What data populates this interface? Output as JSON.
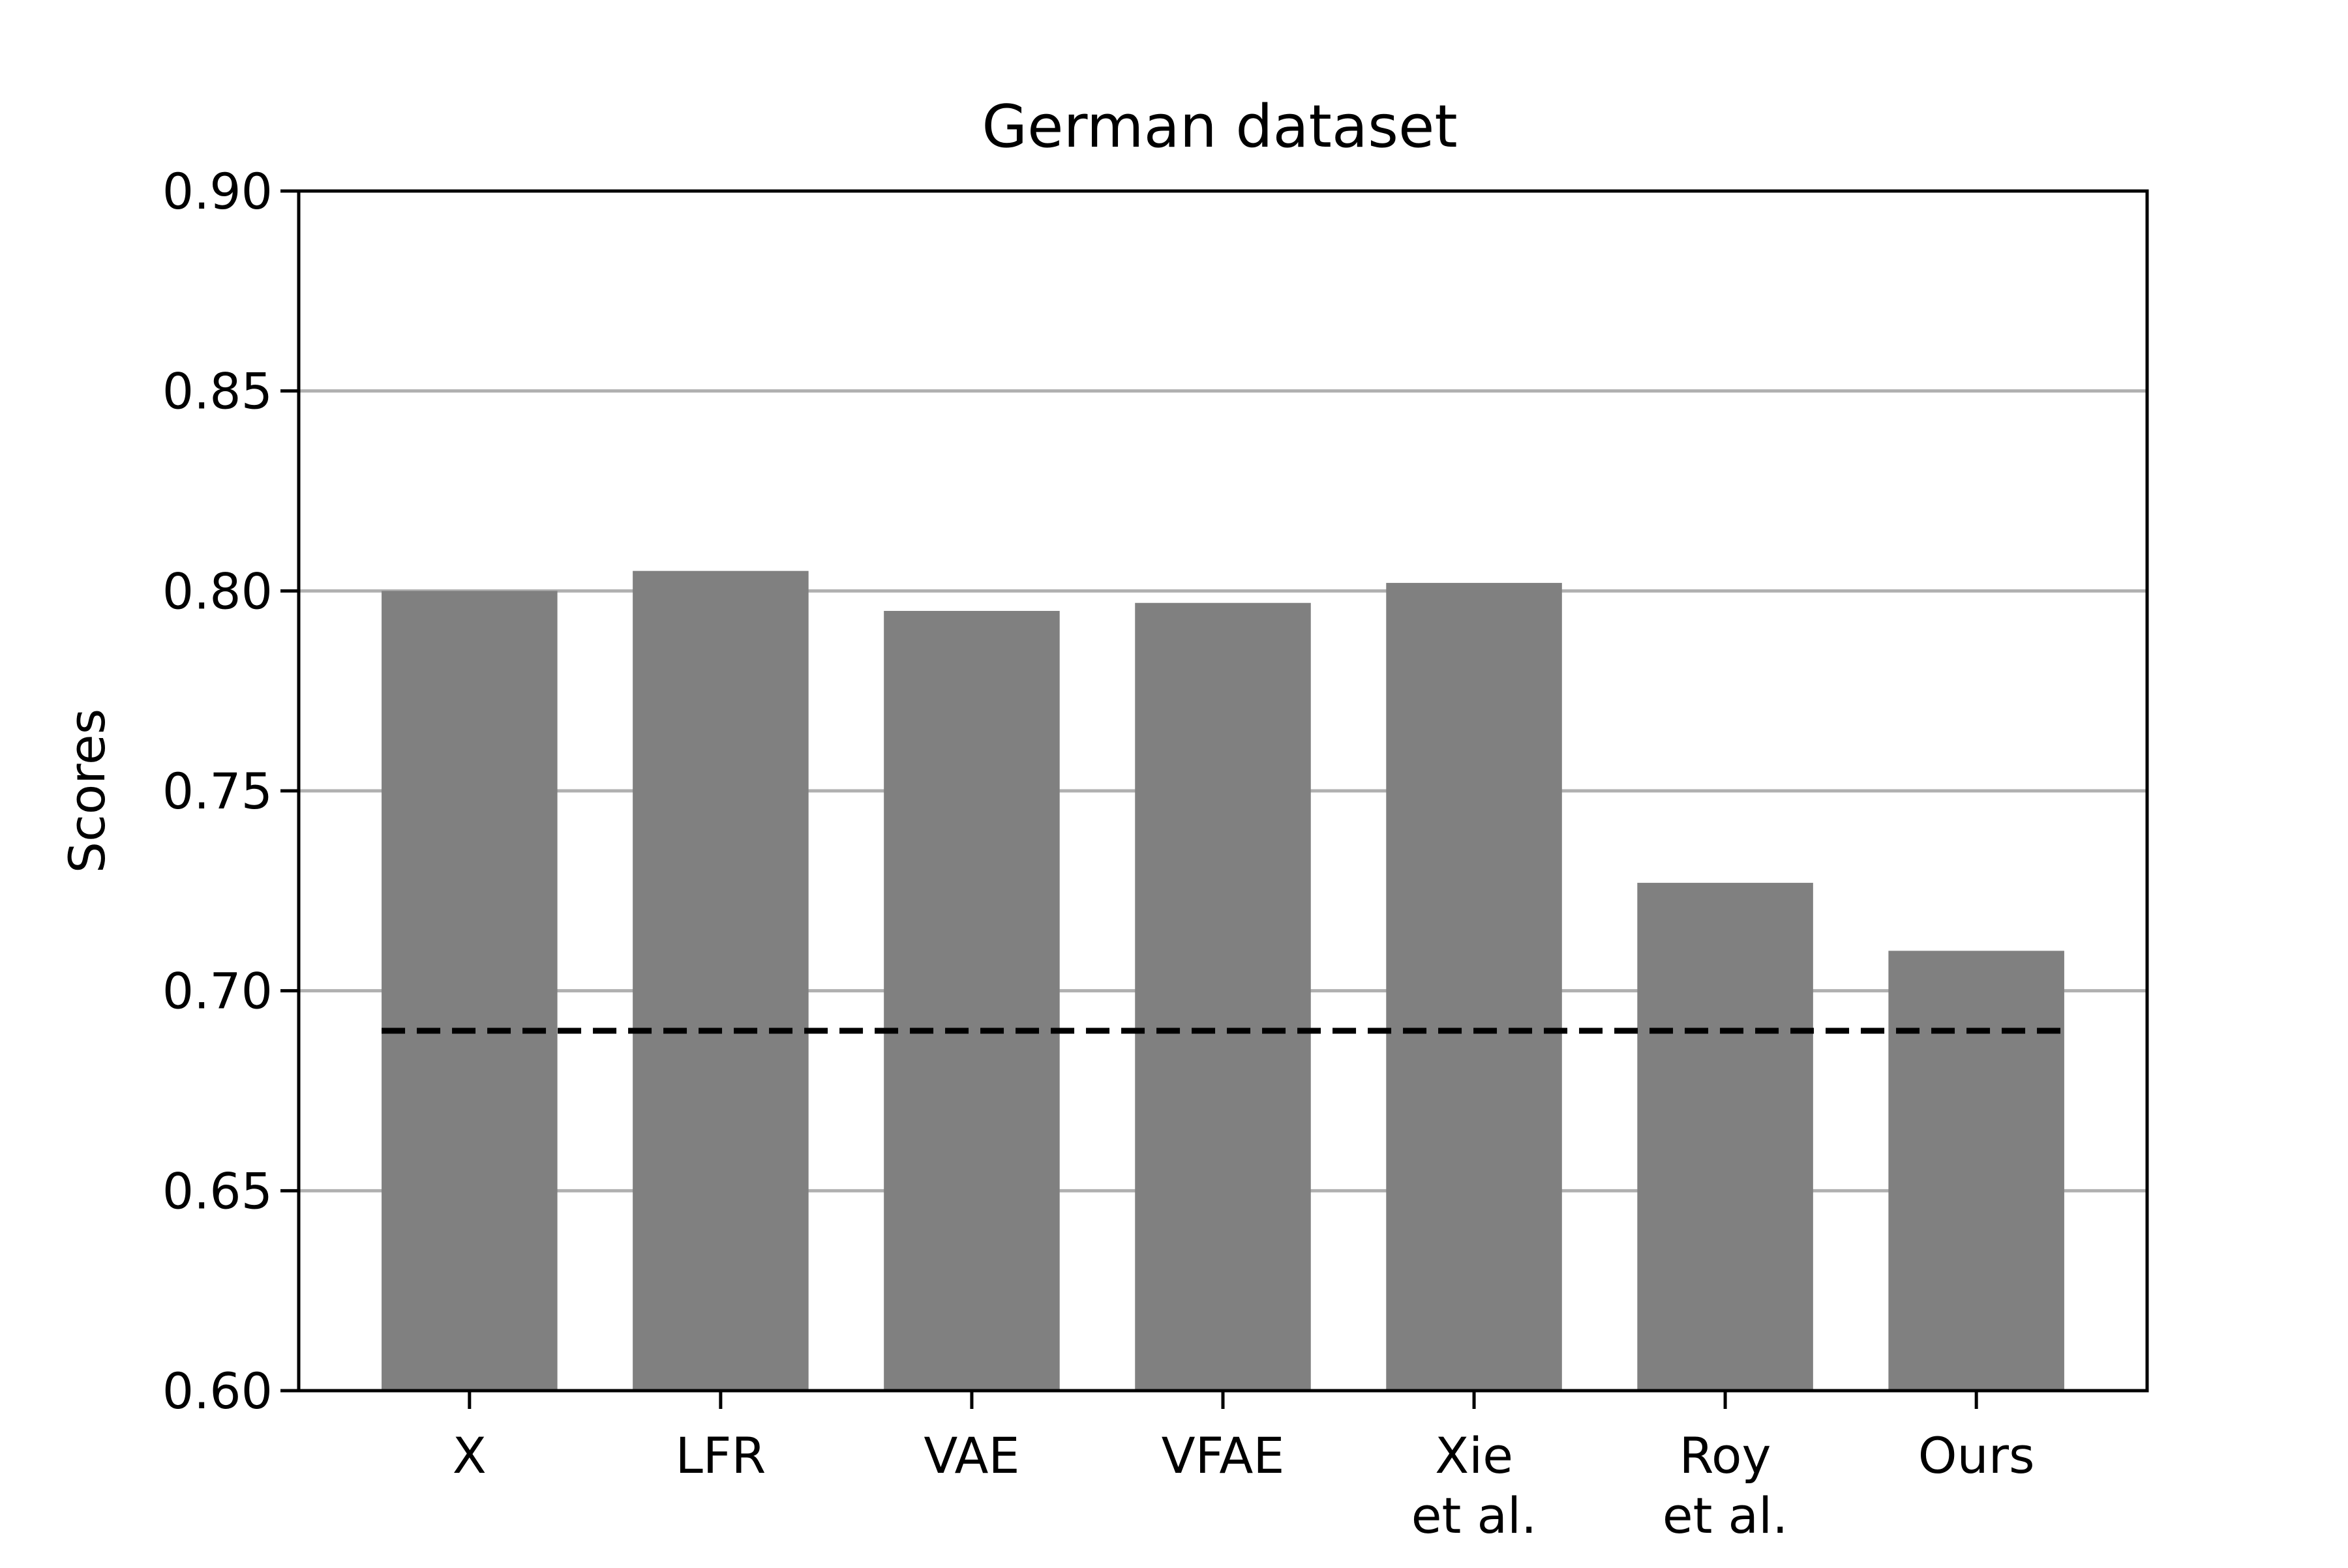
{
  "chart_data": {
    "type": "bar",
    "title": "German dataset",
    "xlabel": "",
    "ylabel": "Scores",
    "categories": [
      [
        "X"
      ],
      [
        "LFR"
      ],
      [
        "VAE"
      ],
      [
        "VFAE"
      ],
      [
        "Xie",
        "et al."
      ],
      [
        "Roy",
        "et al."
      ],
      [
        "Ours"
      ]
    ],
    "values": [
      0.8,
      0.805,
      0.795,
      0.797,
      0.802,
      0.727,
      0.71
    ],
    "ylim": [
      0.6,
      0.9
    ],
    "yticks": [
      "0.60",
      "0.65",
      "0.70",
      "0.75",
      "0.80",
      "0.85",
      "0.90"
    ],
    "reference_line": 0.69,
    "grid": "horizontal",
    "colors": {
      "bar": "#808080",
      "grid": "#b0b0b0",
      "reference_line": "#000000",
      "axes": "#000000"
    }
  }
}
